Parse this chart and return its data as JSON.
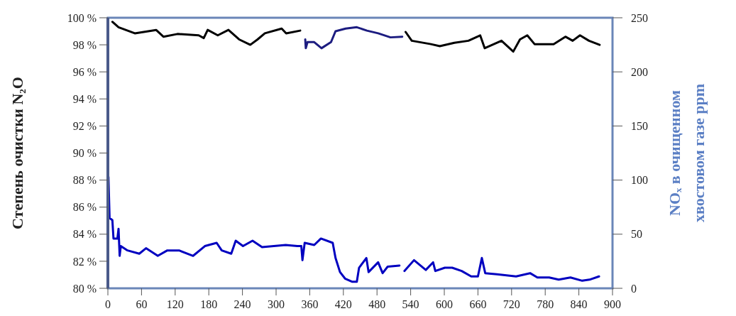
{
  "chart_data": {
    "type": "line",
    "ylabel": "Степень очистки N₂O",
    "y2label": "NOₓ в очищенном хвостовом газе ppm",
    "xlim": [
      0,
      900
    ],
    "xticks": [
      0,
      60,
      120,
      180,
      240,
      300,
      360,
      420,
      480,
      540,
      600,
      660,
      720,
      780,
      840,
      900
    ],
    "ylim": [
      80,
      100
    ],
    "yticks": [
      {
        "value": 80,
        "label": "80 %"
      },
      {
        "value": 82,
        "label": "82 %"
      },
      {
        "value": 84,
        "label": "84 %"
      },
      {
        "value": 86,
        "label": "86 %"
      },
      {
        "value": 88,
        "label": "88 %"
      },
      {
        "value": 90,
        "label": "90 %"
      },
      {
        "value": 92,
        "label": "92 %"
      },
      {
        "value": 94,
        "label": "94 %"
      },
      {
        "value": 96,
        "label": "96 %"
      },
      {
        "value": 98,
        "label": "98 %"
      },
      {
        "value": 100,
        "label": "100 %"
      }
    ],
    "y2lim": [
      0,
      250
    ],
    "y2ticks": [
      0,
      50,
      100,
      150,
      200,
      250
    ],
    "marker": "none",
    "line_style": "solid",
    "series": [
      {
        "color": "#000000",
        "x": [
          8,
          19,
          48,
          86,
          99,
          124,
          162,
          171,
          178,
          196,
          215,
          234,
          254,
          267,
          280,
          310,
          318,
          343
        ],
        "values": [
          99.7,
          99.3,
          98.85,
          99.1,
          98.6,
          98.8,
          98.7,
          98.5,
          99.1,
          98.7,
          99.1,
          98.4,
          98.0,
          98.4,
          98.85,
          99.2,
          98.85,
          99.05
        ]
      },
      {
        "color": "#1c1c80",
        "x": [
          352,
          353,
          356,
          368,
          381,
          398,
          406,
          424,
          444,
          462,
          482,
          504,
          525
        ],
        "values": [
          98.4,
          97.75,
          98.2,
          98.2,
          97.75,
          98.2,
          99.0,
          99.2,
          99.3,
          99.05,
          98.85,
          98.55,
          98.6
        ]
      },
      {
        "color": "#000000",
        "x": [
          531,
          542,
          576,
          592,
          618,
          643,
          664,
          672,
          702,
          723,
          735,
          748,
          761,
          795,
          816,
          829,
          842,
          858,
          877
        ],
        "values": [
          98.95,
          98.3,
          98.05,
          97.9,
          98.15,
          98.3,
          98.7,
          97.75,
          98.3,
          97.5,
          98.4,
          98.7,
          98.05,
          98.05,
          98.6,
          98.3,
          98.7,
          98.3,
          98.0
        ]
      },
      {
        "color": "#0000c0",
        "axis": "y2",
        "x": [
          1,
          3,
          8,
          10,
          17,
          19,
          21,
          23,
          35,
          56,
          68,
          89,
          106,
          127,
          152,
          173,
          194,
          203,
          220,
          228,
          241,
          258,
          275,
          296,
          317,
          338,
          345,
          347,
          351,
          368,
          380,
          401,
          406,
          414,
          423,
          436,
          444,
          448,
          461,
          465,
          482,
          490,
          499,
          520,
          522,
          529,
          546,
          567,
          580,
          584,
          601,
          614,
          631,
          648,
          660,
          667,
          673,
          694,
          728,
          753,
          766,
          787,
          804,
          825,
          846,
          859,
          876
        ],
        "values": [
          103,
          65,
          63,
          46,
          46,
          55,
          30,
          39,
          35,
          32,
          37,
          30,
          35,
          35,
          30,
          39,
          42,
          35,
          32,
          44,
          39,
          44,
          38,
          39,
          40,
          39,
          39,
          26,
          42,
          40,
          46,
          42,
          28,
          15,
          9,
          6,
          6,
          19,
          28,
          15,
          24,
          14,
          20,
          21,
          null,
          16,
          26,
          17,
          24,
          16,
          19,
          19,
          16,
          11,
          11,
          28,
          14,
          13,
          11,
          14,
          10,
          10,
          8,
          10,
          7,
          8,
          11
        ]
      }
    ]
  }
}
